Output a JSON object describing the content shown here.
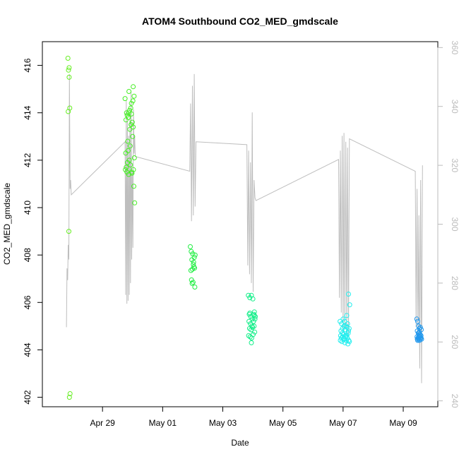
{
  "chart_data": {
    "type": "scatter",
    "title": "ATOM4 Southbound CO2_MED_gmdscale",
    "xlabel": "Date",
    "ylabel": "CO2_MED_gmdscale",
    "x_tick_labels": [
      "Apr 29",
      "May 01",
      "May 03",
      "May 05",
      "May 07",
      "May 09"
    ],
    "x_tick_values": [
      29,
      31,
      33,
      35,
      37,
      39
    ],
    "xlim": [
      27.0,
      40.15
    ],
    "ylim": [
      401.6,
      417.0
    ],
    "y_ticks": [
      402,
      404,
      406,
      408,
      410,
      412,
      414,
      416
    ],
    "y2lim": [
      238.0,
      362.0
    ],
    "y2_ticks": [
      240,
      260,
      280,
      300,
      320,
      340,
      360
    ],
    "grid": false,
    "colors": {
      "axis": "#000000",
      "right_axis": "#bbbbbb",
      "line": "#bebebe",
      "group_1": "#66ee22",
      "group_2": "#44ee22",
      "group_3": "#22ee44",
      "group_4": "#11ee88",
      "group_5": "#22eeee",
      "group_6": "#2299ee"
    },
    "scatter_groups": [
      {
        "color_key": "group_1",
        "x": [
          27.85,
          27.87,
          27.89,
          27.91,
          27.86,
          27.88,
          27.92,
          27.9,
          27.89
        ],
        "y": [
          416.3,
          415.8,
          415.5,
          414.2,
          414.05,
          409.0,
          402.15,
          402.0,
          415.9
        ]
      },
      {
        "color_key": "group_2",
        "x": [
          29.75,
          29.8,
          29.88,
          29.96,
          30.02,
          30.05,
          29.9,
          29.82,
          29.86,
          29.94,
          29.99,
          29.78,
          29.84,
          29.92,
          30.0,
          30.06,
          29.77,
          29.83,
          29.89,
          29.97,
          30.03,
          29.79,
          29.87,
          29.93,
          29.98,
          30.04,
          29.81,
          29.85,
          29.91,
          29.95,
          30.01,
          30.07,
          29.76,
          29.88,
          29.96,
          30.02
        ],
        "y": [
          414.6,
          414.0,
          414.9,
          414.4,
          415.1,
          414.7,
          414.1,
          413.9,
          413.8,
          414.2,
          413.6,
          413.7,
          412.8,
          412.6,
          413.0,
          412.1,
          412.3,
          411.9,
          412.0,
          411.5,
          411.6,
          411.7,
          411.4,
          411.8,
          411.45,
          410.9,
          411.5,
          412.4,
          413.3,
          413.5,
          414.5,
          410.2,
          411.6,
          414.0,
          413.95,
          413.4
        ]
      },
      {
        "color_key": "group_3",
        "x": [
          31.92,
          31.95,
          32.0,
          32.05,
          32.08,
          31.97,
          32.02,
          32.06,
          31.94,
          31.99,
          32.04,
          31.96,
          32.01,
          32.07,
          31.98,
          32.03
        ],
        "y": [
          408.35,
          408.15,
          408.05,
          407.9,
          408.0,
          407.8,
          407.6,
          407.45,
          407.35,
          407.4,
          407.5,
          406.95,
          406.85,
          406.65,
          406.8,
          407.7
        ]
      },
      {
        "color_key": "group_4",
        "x": [
          33.85,
          33.9,
          33.95,
          34.0,
          34.05,
          34.08,
          33.88,
          33.93,
          33.98,
          34.03,
          33.87,
          33.92,
          33.97,
          34.02,
          34.07,
          33.89,
          33.94,
          33.99,
          34.04,
          33.86,
          33.91,
          33.96,
          34.01,
          34.06,
          33.95,
          34.05,
          33.9
        ],
        "y": [
          406.3,
          406.2,
          406.3,
          406.15,
          405.6,
          405.4,
          405.5,
          405.4,
          405.3,
          405.5,
          405.2,
          405.1,
          405.0,
          405.2,
          405.3,
          404.9,
          404.85,
          404.95,
          405.0,
          404.6,
          404.55,
          404.5,
          404.65,
          404.75,
          404.3,
          405.45,
          405.55
        ]
      },
      {
        "color_key": "group_5",
        "x": [
          36.9,
          36.95,
          37.0,
          37.05,
          37.1,
          37.15,
          37.2,
          36.93,
          36.98,
          37.03,
          37.08,
          37.13,
          37.18,
          36.92,
          36.97,
          37.02,
          37.07,
          37.12,
          37.17,
          36.91,
          36.96,
          37.01,
          37.06,
          37.11,
          37.16,
          37.21,
          36.94,
          36.99,
          37.04,
          37.09,
          37.14,
          37.19,
          37.22,
          37.18,
          37.12
        ],
        "y": [
          405.2,
          405.1,
          405.3,
          405.2,
          405.0,
          405.1,
          404.9,
          404.8,
          404.9,
          405.0,
          404.85,
          404.95,
          404.8,
          404.6,
          404.7,
          404.65,
          404.55,
          404.6,
          404.7,
          404.4,
          404.35,
          404.45,
          404.3,
          404.4,
          404.25,
          404.35,
          404.5,
          404.55,
          404.45,
          404.6,
          404.5,
          404.4,
          405.9,
          406.35,
          405.45
        ]
      },
      {
        "color_key": "group_6",
        "x": [
          39.45,
          39.48,
          39.51,
          39.54,
          39.57,
          39.6,
          39.47,
          39.5,
          39.53,
          39.56,
          39.59,
          39.46,
          39.49,
          39.52,
          39.55,
          39.58,
          39.61,
          39.48,
          39.51,
          39.54,
          39.57,
          39.5,
          39.53,
          39.56,
          39.59,
          39.47,
          39.52
        ],
        "y": [
          405.3,
          405.2,
          405.0,
          404.9,
          404.95,
          404.85,
          404.8,
          404.7,
          404.75,
          404.65,
          404.6,
          404.55,
          404.5,
          404.6,
          404.55,
          404.5,
          404.45,
          404.4,
          404.45,
          404.4,
          404.45,
          404.5,
          404.55,
          404.6,
          404.5,
          404.45,
          404.7
        ]
      }
    ],
    "line_series": {
      "axis": "right",
      "x": [
        27.8,
        27.82,
        27.84,
        27.86,
        27.88,
        27.9,
        27.92,
        27.94,
        27.96,
        29.75,
        29.77,
        29.79,
        29.81,
        29.83,
        29.85,
        29.87,
        29.89,
        29.91,
        29.93,
        29.95,
        29.97,
        29.99,
        30.01,
        30.03,
        30.05,
        30.07,
        30.09,
        31.9,
        31.93,
        31.96,
        31.99,
        32.02,
        32.05,
        32.08,
        32.11,
        33.8,
        33.83,
        33.86,
        33.89,
        33.92,
        33.95,
        33.98,
        34.01,
        34.04,
        34.07,
        34.1,
        36.85,
        36.88,
        36.91,
        36.94,
        36.97,
        37.0,
        37.03,
        37.06,
        37.09,
        37.12,
        37.15,
        37.18,
        37.21,
        39.4,
        39.43,
        39.46,
        39.49,
        39.52,
        39.55,
        39.58,
        39.61,
        39.64
      ],
      "y": [
        265,
        285,
        281,
        293,
        288,
        351,
        312,
        315,
        310,
        328,
        276,
        342,
        273,
        335,
        274,
        330,
        276,
        338,
        280,
        345,
        288,
        318,
        292,
        339,
        324,
        330,
        323,
        318,
        341,
        301,
        347,
        303,
        351,
        306,
        328,
        327,
        286,
        325,
        283,
        321,
        280,
        338,
        277,
        315,
        309,
        308,
        322,
        275,
        325,
        270,
        330,
        263,
        331,
        265,
        328,
        263,
        326,
        262,
        329,
        318,
        265,
        312,
        260,
        303,
        251,
        315,
        246,
        320
      ]
    }
  }
}
